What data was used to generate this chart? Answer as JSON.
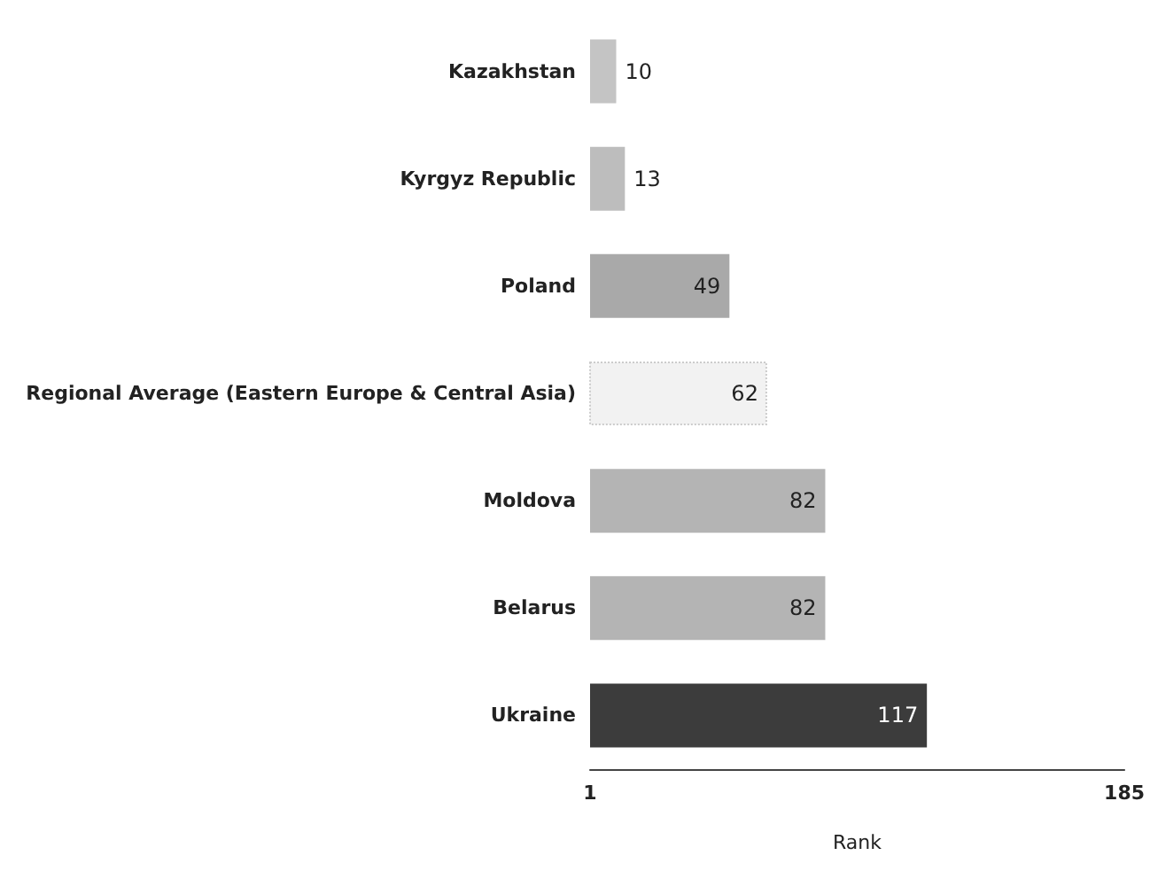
{
  "chart_data": {
    "type": "bar",
    "orientation": "horizontal",
    "xlabel": "Rank",
    "categories": [
      "Kazakhstan",
      "Kyrgyz Republic",
      "Poland",
      "Regional Average (Eastern Europe & Central Asia)",
      "Moldova",
      "Belarus",
      "Ukraine"
    ],
    "values": [
      10,
      13,
      49,
      62,
      82,
      82,
      117
    ],
    "colors": [
      "#c4c4c4",
      "#bdbdbd",
      "#a9a9a9",
      "#f2f2f2",
      "#b4b4b4",
      "#b4b4b4",
      "#3c3c3c"
    ],
    "xlim": [
      1,
      185
    ],
    "xticks": [
      1,
      185
    ],
    "data_labels": true
  }
}
